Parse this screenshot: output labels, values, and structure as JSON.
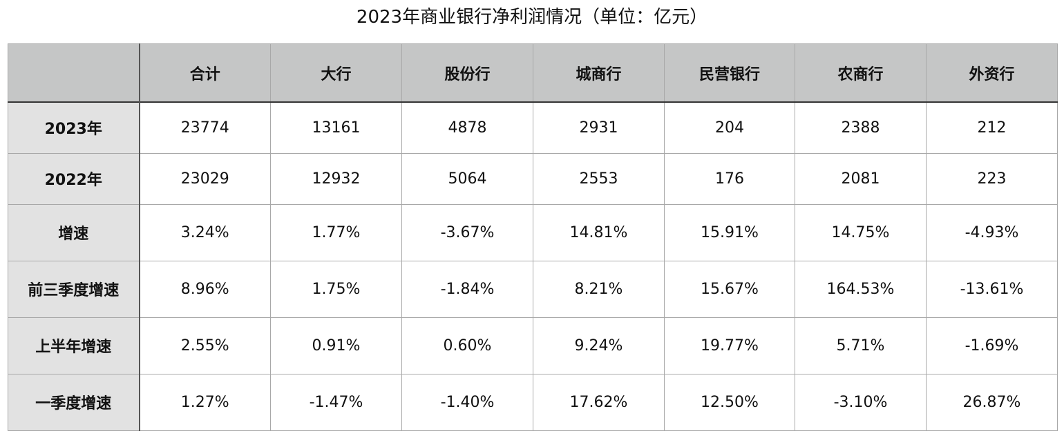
{
  "title": "2023年商业银行净利润情况（单位：亿元）",
  "columns": [
    "",
    "合计",
    "大行",
    "股份行",
    "城商行",
    "民营银行",
    "农商行",
    "外资行"
  ],
  "rows": [
    {
      "label": "2023年",
      "values": [
        "23774",
        "13161",
        "4878",
        "2931",
        "204",
        "2388",
        "212"
      ]
    },
    {
      "label": "2022年",
      "values": [
        "23029",
        "12932",
        "5064",
        "2553",
        "176",
        "2081",
        "223"
      ]
    },
    {
      "label": "增速",
      "values": [
        "3.24%",
        "1.77%",
        "-3.67%",
        "14.81%",
        "15.91%",
        "14.75%",
        "-4.93%"
      ]
    },
    {
      "label": "前三季度增速",
      "values": [
        "8.96%",
        "1.75%",
        "-1.84%",
        "8.21%",
        "15.67%",
        "164.53%",
        "-13.61%"
      ]
    },
    {
      "label": "上半年增速",
      "values": [
        "2.55%",
        "0.91%",
        "0.60%",
        "9.24%",
        "19.77%",
        "5.71%",
        "-1.69%"
      ]
    },
    {
      "label": "一季度增速",
      "values": [
        "1.27%",
        "-1.47%",
        "-1.40%",
        "17.62%",
        "12.50%",
        "-3.10%",
        "26.87%"
      ]
    }
  ],
  "colors": {
    "header_bg": "#c5c6c6",
    "row_header_bg": "#e2e2e2",
    "border": "#a8a8a8"
  }
}
